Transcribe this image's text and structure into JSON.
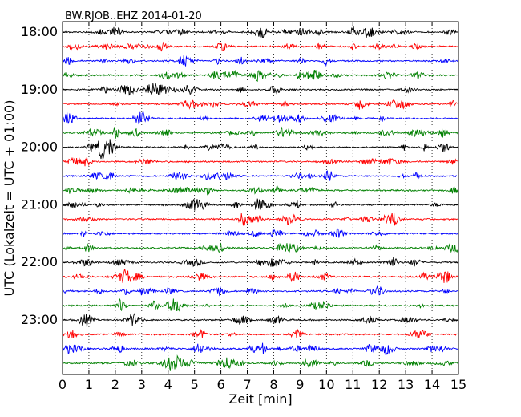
{
  "chart_data": {
    "type": "line",
    "title": "BW.RJOB..EHZ 2014-01-20",
    "xlabel": "Zeit  [min]",
    "ylabel": "UTC (Lokalzeit = UTC + 01:00)",
    "xlim": [
      0,
      15
    ],
    "x_ticks": [
      "0",
      "1",
      "2",
      "3",
      "4",
      "5",
      "6",
      "7",
      "8",
      "9",
      "10",
      "11",
      "12",
      "13",
      "14",
      "15"
    ],
    "y_tick_labels": [
      "18:00",
      "19:00",
      "20:00",
      "21:00",
      "22:00",
      "23:00"
    ],
    "traces_per_hour": 4,
    "trace_count": 24,
    "trace_colors": [
      "#000000",
      "#ff0000",
      "#0000ff",
      "#008000"
    ],
    "grid": "vertical-dotted"
  }
}
